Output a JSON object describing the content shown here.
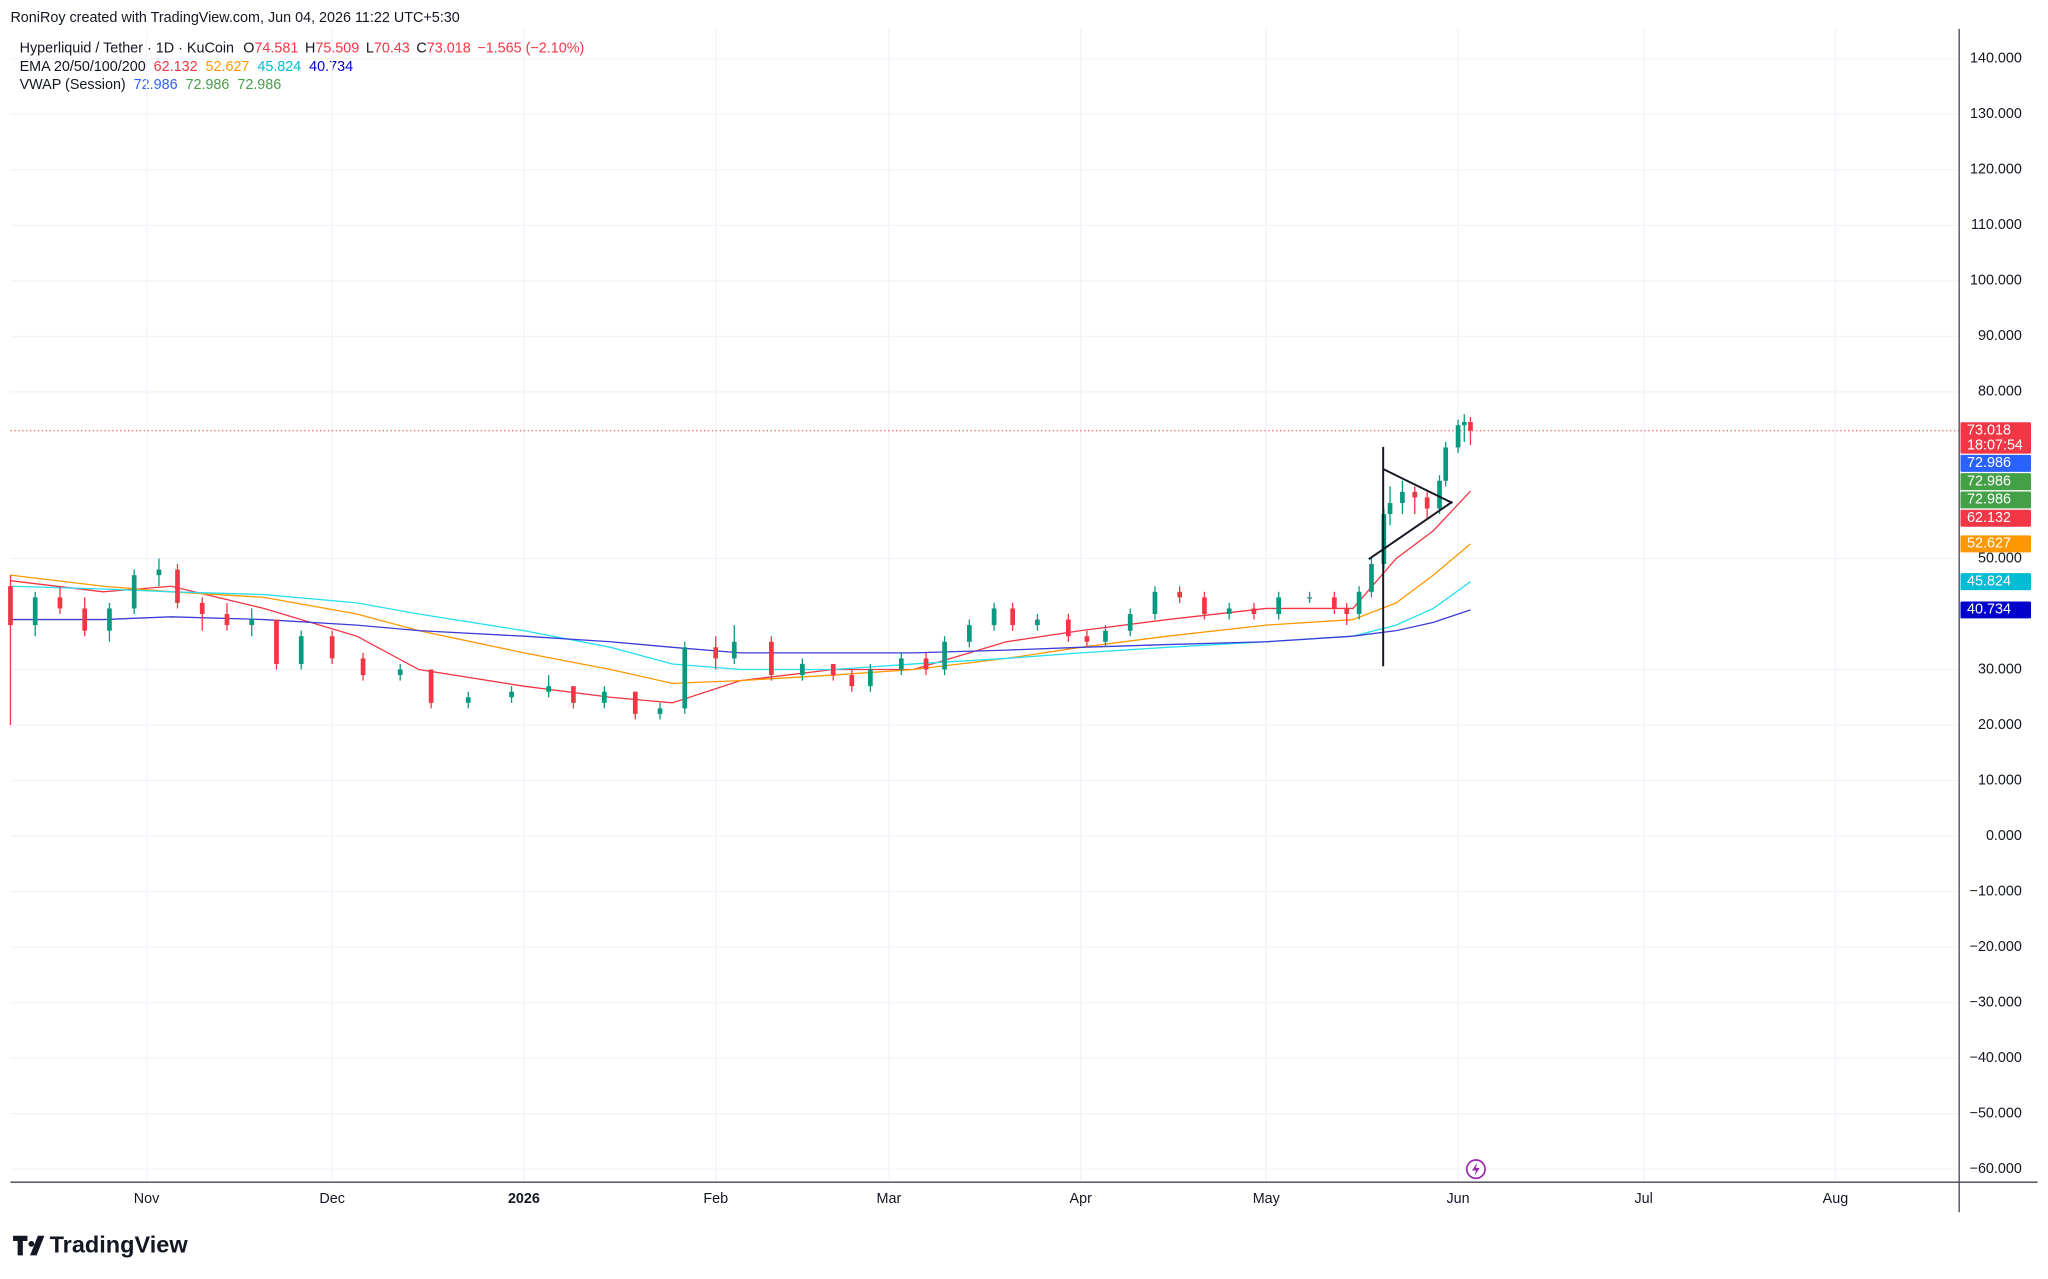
{
  "chart_data": {
    "type": "candlestick",
    "credit": "RoniRoy created with TradingView.com, Jun 04, 2026 11:22 UTC+5:30",
    "symbol": "Hyperliquid / Tether · 1D · KuCoin",
    "ohlc_labels": [
      "O",
      "H",
      "L",
      "C"
    ],
    "change": "−1.565 (−2.10%)",
    "ema_label": "EMA 20/50/100/200",
    "countdown": "18:07:54",
    "brand": "TradingView",
    "up_color": "#089981",
    "down_color": "#f23645",
    "grid": true,
    "dates": [
      "2025-10-10",
      "2025-10-14",
      "2025-10-18",
      "2025-10-22",
      "2025-10-26",
      "2025-10-30",
      "2025-11-03",
      "2025-11-06",
      "2025-11-10",
      "2025-11-14",
      "2025-11-18",
      "2025-11-22",
      "2025-11-26",
      "2025-12-01",
      "2025-12-06",
      "2025-12-12",
      "2025-12-17",
      "2025-12-23",
      "2025-12-30",
      "2026-01-05",
      "2026-01-09",
      "2026-01-14",
      "2026-01-19",
      "2026-01-23",
      "2026-01-27",
      "2026-02-01",
      "2026-02-04",
      "2026-02-10",
      "2026-02-15",
      "2026-02-20",
      "2026-02-23",
      "2026-02-26",
      "2026-03-03",
      "2026-03-07",
      "2026-03-10",
      "2026-03-14",
      "2026-03-18",
      "2026-03-21",
      "2026-03-25",
      "2026-03-30",
      "2026-04-02",
      "2026-04-05",
      "2026-04-09",
      "2026-04-13",
      "2026-04-17",
      "2026-04-21",
      "2026-04-25",
      "2026-04-29",
      "2026-05-03",
      "2026-05-08",
      "2026-05-12",
      "2026-05-14",
      "2026-05-16",
      "2026-05-18",
      "2026-05-20",
      "2026-05-21",
      "2026-05-23",
      "2026-05-25",
      "2026-05-27",
      "2026-05-29",
      "2026-05-30",
      "2026-06-01",
      "2026-06-02",
      "2026-06-03"
    ],
    "open": [
      45,
      38,
      43,
      41,
      37,
      41,
      47,
      48,
      42,
      40,
      38,
      39,
      31,
      36,
      32,
      29,
      30,
      24,
      25,
      26,
      27,
      24,
      26,
      22,
      23,
      34,
      32,
      35,
      29,
      31,
      29,
      27,
      30,
      32,
      30,
      35,
      38,
      41,
      38,
      39,
      36,
      35,
      37,
      40,
      44,
      43,
      40,
      41,
      40,
      43,
      43,
      41,
      40,
      44,
      49,
      58,
      60,
      62,
      61,
      59,
      64,
      70,
      74,
      74.581
    ],
    "high": [
      47,
      44,
      45,
      43,
      42,
      48,
      50,
      49,
      43,
      42,
      41,
      39,
      37,
      37,
      33,
      31,
      30,
      26,
      27,
      29,
      27,
      27,
      26,
      24,
      35,
      36,
      38,
      36,
      32,
      31,
      30,
      31,
      33,
      33,
      36,
      39,
      42,
      42,
      40,
      40,
      37,
      38,
      41,
      45,
      45,
      44,
      42,
      42,
      44,
      44,
      44,
      42,
      45,
      50,
      59,
      63,
      64,
      63,
      62,
      65,
      71,
      75,
      76,
      75.509
    ],
    "low": [
      20,
      36,
      40,
      36,
      35,
      40,
      45,
      41,
      37,
      37,
      36,
      30,
      30,
      31,
      28,
      28,
      23,
      23,
      24,
      25,
      23,
      23,
      21,
      21,
      22,
      30,
      31,
      28,
      28,
      28,
      26,
      26,
      29,
      29,
      29,
      34,
      37,
      37,
      37,
      35,
      34,
      34,
      36,
      39,
      42,
      39,
      39,
      39,
      39,
      42,
      40,
      38,
      39,
      43,
      48,
      56,
      58,
      58,
      57,
      58,
      63,
      69,
      71,
      70.43
    ],
    "close": [
      38,
      43,
      41,
      37,
      41,
      47,
      48,
      42,
      40,
      38,
      39,
      31,
      36,
      32,
      29,
      30,
      24,
      25,
      26,
      27,
      24,
      26,
      22,
      23,
      34,
      32,
      35,
      29,
      31,
      29,
      27,
      30,
      32,
      30,
      35,
      38,
      41,
      38,
      39,
      36,
      35,
      37,
      40,
      44,
      43,
      40,
      41,
      40,
      43,
      43,
      41,
      40,
      44,
      49,
      58,
      60,
      62,
      61,
      59,
      64,
      70,
      74,
      74.581,
      73.018
    ],
    "lines": [
      {
        "name": "EMA 20",
        "color": "#f23645",
        "x": [
          "2025-10-10",
          "2025-10-25",
          "2025-11-05",
          "2025-11-20",
          "2025-12-05",
          "2025-12-15",
          "2026-01-01",
          "2026-01-15",
          "2026-01-25",
          "2026-02-05",
          "2026-02-20",
          "2026-03-05",
          "2026-03-20",
          "2026-04-01",
          "2026-04-15",
          "2026-05-01",
          "2026-05-15",
          "2026-05-22",
          "2026-05-28",
          "2026-06-03"
        ],
        "values": [
          46,
          44,
          45,
          41,
          36,
          30,
          27,
          25,
          24,
          28,
          30,
          30,
          35,
          37,
          39,
          41,
          41,
          50,
          55,
          62.132
        ]
      },
      {
        "name": "EMA 50",
        "color": "#ff9800",
        "x": [
          "2025-10-10",
          "2025-10-25",
          "2025-11-05",
          "2025-11-20",
          "2025-12-05",
          "2025-12-15",
          "2026-01-01",
          "2026-01-15",
          "2026-01-25",
          "2026-02-05",
          "2026-02-20",
          "2026-03-05",
          "2026-03-20",
          "2026-04-01",
          "2026-04-15",
          "2026-05-01",
          "2026-05-15",
          "2026-05-22",
          "2026-05-28",
          "2026-06-03"
        ],
        "values": [
          47,
          45,
          44,
          43,
          40,
          37,
          33,
          30,
          27.5,
          28,
          29,
          30,
          32,
          34,
          36,
          38,
          39,
          42,
          47,
          52.627
        ]
      },
      {
        "name": "EMA 100",
        "color": "#26e0f0",
        "x": [
          "2025-10-10",
          "2025-10-25",
          "2025-11-05",
          "2025-11-20",
          "2025-12-05",
          "2025-12-15",
          "2026-01-01",
          "2026-01-15",
          "2026-01-25",
          "2026-02-05",
          "2026-02-20",
          "2026-03-05",
          "2026-03-20",
          "2026-04-01",
          "2026-04-15",
          "2026-05-01",
          "2026-05-15",
          "2026-05-22",
          "2026-05-28",
          "2026-06-03"
        ],
        "values": [
          45,
          44.5,
          44,
          43.5,
          42,
          40,
          37,
          34,
          31,
          30,
          30,
          31,
          32,
          33,
          34,
          35,
          36,
          38,
          41,
          45.824
        ]
      },
      {
        "name": "EMA 200",
        "color": "#3c3cd6",
        "x": [
          "2025-10-10",
          "2025-10-25",
          "2025-11-05",
          "2025-11-20",
          "2025-12-05",
          "2025-12-15",
          "2026-01-01",
          "2026-01-15",
          "2026-01-25",
          "2026-02-05",
          "2026-02-20",
          "2026-03-05",
          "2026-03-20",
          "2026-04-01",
          "2026-04-15",
          "2026-05-01",
          "2026-05-15",
          "2026-05-22",
          "2026-05-28",
          "2026-06-03"
        ],
        "values": [
          39,
          39,
          39.5,
          39,
          38,
          37,
          36,
          35,
          34,
          33,
          33,
          33,
          33.5,
          34,
          34.5,
          35,
          36,
          37,
          38.5,
          40.734
        ]
      }
    ],
    "tag_colors": [
      "#2962ff",
      "#f23645",
      "#ff9800",
      "#00bcd4",
      "#0000cc"
    ],
    "vwap": {
      "label": "VWAP (Session)",
      "values": [
        72.986,
        72.986,
        72.986
      ],
      "colors": [
        "#2962ff",
        "#43a047",
        "#43a047"
      ]
    },
    "xlim": [
      "2025-10-10",
      "2026-08-21"
    ],
    "xticks": [
      {
        "value": "2025-11-01",
        "label": "Nov"
      },
      {
        "value": "2025-12-01",
        "label": "Dec"
      },
      {
        "value": "2026-01-01",
        "label": "2026"
      },
      {
        "value": "2026-02-01",
        "label": "Feb"
      },
      {
        "value": "2026-03-01",
        "label": "Mar"
      },
      {
        "value": "2026-04-01",
        "label": "Apr"
      },
      {
        "value": "2026-05-01",
        "label": "May"
      },
      {
        "value": "2026-06-01",
        "label": "Jun"
      },
      {
        "value": "2026-07-01",
        "label": "Jul"
      },
      {
        "value": "2026-08-01",
        "label": "Aug"
      }
    ],
    "ylim": [
      -62.35,
      145.4
    ],
    "yticks": [
      {
        "value": 140,
        "label": "140.000"
      },
      {
        "value": 130,
        "label": "130.000"
      },
      {
        "value": 120,
        "label": "120.000"
      },
      {
        "value": 110,
        "label": "110.000"
      },
      {
        "value": 100,
        "label": "100.000"
      },
      {
        "value": 90,
        "label": "90.000"
      },
      {
        "value": 80,
        "label": "80.000"
      },
      {
        "value": 50,
        "label": "50.000"
      },
      {
        "value": 30,
        "label": "30.000"
      },
      {
        "value": 20,
        "label": "20.000"
      },
      {
        "value": 10,
        "label": "10.000"
      },
      {
        "value": 0,
        "label": "0.000"
      },
      {
        "value": -10,
        "label": "−10.000"
      },
      {
        "value": -20,
        "label": "−20.000"
      },
      {
        "value": -30,
        "label": "−30.000"
      },
      {
        "value": -40,
        "label": "−40.000"
      },
      {
        "value": -50,
        "label": "−50.000"
      },
      {
        "value": -60,
        "label": "−60.000"
      }
    ]
  }
}
